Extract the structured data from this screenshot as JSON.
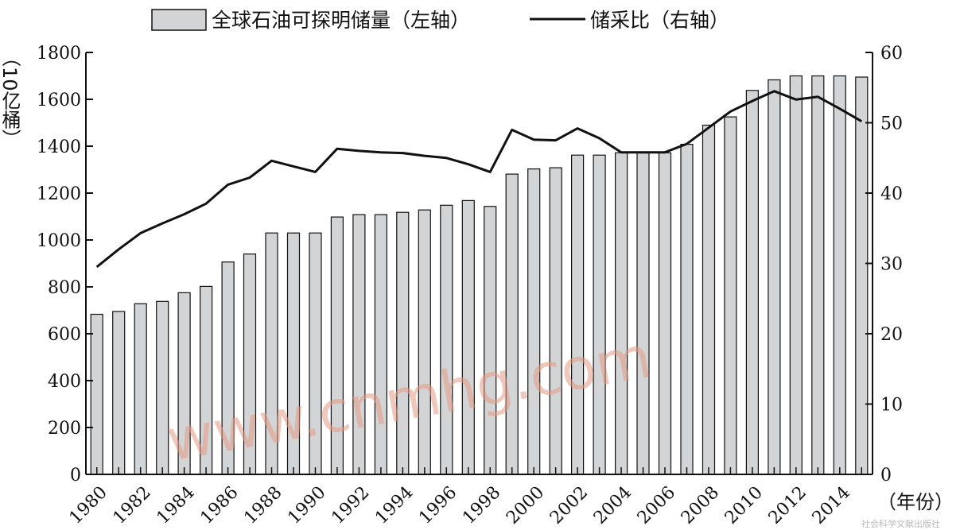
{
  "chart_data": {
    "type": "bar+line",
    "x": [
      1980,
      1981,
      1982,
      1983,
      1984,
      1985,
      1986,
      1987,
      1988,
      1989,
      1990,
      1991,
      1992,
      1993,
      1994,
      1995,
      1996,
      1997,
      1998,
      1999,
      2000,
      2001,
      2002,
      2003,
      2004,
      2005,
      2006,
      2007,
      2008,
      2009,
      2010,
      2011,
      2012,
      2013,
      2014,
      2015
    ],
    "x_tick_labels": [
      "1980",
      "1982",
      "1984",
      "1986",
      "1988",
      "1990",
      "1992",
      "1994",
      "1996",
      "1998",
      "2000",
      "2002",
      "2004",
      "2006",
      "2008",
      "2010",
      "2012",
      "2014"
    ],
    "xlabel": "（年份）",
    "series": [
      {
        "name": "全球石油可探明储量（左轴）",
        "type": "bar",
        "axis": "left",
        "color": "#d3d4d6",
        "values": [
          683,
          695,
          728,
          738,
          775,
          802,
          906,
          940,
          1030,
          1030,
          1030,
          1098,
          1108,
          1108,
          1118,
          1128,
          1148,
          1168,
          1143,
          1281,
          1303,
          1308,
          1362,
          1362,
          1372,
          1372,
          1372,
          1408,
          1490,
          1525,
          1638,
          1683,
          1700,
          1700,
          1700,
          1695
        ]
      },
      {
        "name": "储采比（右轴）",
        "type": "line",
        "axis": "right",
        "color": "#111111",
        "values": [
          29.5,
          32.0,
          34.3,
          35.7,
          37.0,
          38.5,
          41.2,
          42.2,
          44.6,
          43.8,
          43.0,
          46.3,
          46.0,
          45.8,
          45.7,
          45.3,
          45.0,
          44.1,
          43.0,
          49.0,
          47.6,
          47.5,
          49.2,
          47.8,
          45.8,
          45.8,
          45.8,
          47.0,
          49.3,
          51.6,
          53.1,
          54.5,
          53.3,
          53.7,
          52.0,
          50.2
        ]
      }
    ],
    "y_left": {
      "label": "（10亿桶）",
      "min": 0,
      "max": 1800,
      "ticks": [
        "0",
        "200",
        "400",
        "600",
        "800",
        "1000",
        "1200",
        "1400",
        "1600",
        "1800"
      ]
    },
    "y_right": {
      "min": 0,
      "max": 60,
      "ticks": [
        "0",
        "10",
        "20",
        "30",
        "40",
        "50",
        "60"
      ]
    },
    "legend_position": "top-center",
    "grid": false,
    "watermark": "www.cnmhg.com",
    "credit": "社会科学文献出版社"
  }
}
